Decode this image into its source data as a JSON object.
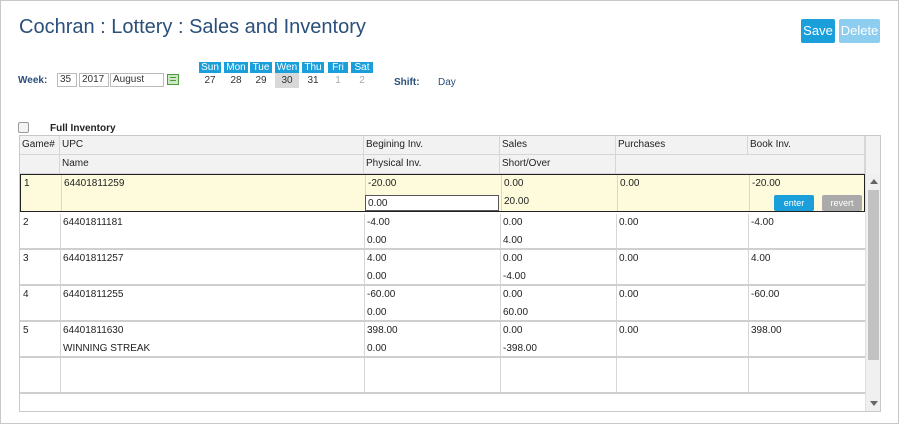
{
  "header": {
    "title": "Cochran : Lottery : Sales and Inventory"
  },
  "toolbar": {
    "save_label": "Save",
    "delete_label": "Delete"
  },
  "week": {
    "label": "Week:",
    "number": "35",
    "year": "2017",
    "month": "August",
    "days": [
      {
        "name": "Sun",
        "num": "27"
      },
      {
        "name": "Mon",
        "num": "28"
      },
      {
        "name": "Tue",
        "num": "29"
      },
      {
        "name": "Wen",
        "num": "30"
      },
      {
        "name": "Thu",
        "num": "31"
      },
      {
        "name": "Fri",
        "num": "1"
      },
      {
        "name": "Sat",
        "num": "2"
      }
    ],
    "selected_day": "30"
  },
  "shift": {
    "label": "Shift:",
    "value": "Day"
  },
  "full_inventory": {
    "label": "Full Inventory",
    "checked": false
  },
  "grid": {
    "header_row1": [
      "Game#",
      "UPC",
      "Begining Inv.",
      "Sales",
      "Purchases",
      "Book Inv."
    ],
    "header_row2": [
      "",
      "Name",
      "Physical Inv.",
      "Short/Over",
      "",
      ""
    ],
    "rows": [
      {
        "game": "1",
        "upc": "64401811259",
        "name": "",
        "begin": "-20.00",
        "physical": "0.00",
        "sales": "0.00",
        "short": "20.00",
        "purchases": "0.00",
        "book": "-20.00"
      },
      {
        "game": "2",
        "upc": "64401811181",
        "name": "",
        "begin": "-4.00",
        "physical": "0.00",
        "sales": "0.00",
        "short": "4.00",
        "purchases": "0.00",
        "book": "-4.00"
      },
      {
        "game": "3",
        "upc": "64401811257",
        "name": "",
        "begin": "4.00",
        "physical": "0.00",
        "sales": "0.00",
        "short": "-4.00",
        "purchases": "0.00",
        "book": "4.00"
      },
      {
        "game": "4",
        "upc": "64401811255",
        "name": "",
        "begin": "-60.00",
        "physical": "0.00",
        "sales": "0.00",
        "short": "60.00",
        "purchases": "0.00",
        "book": "-60.00"
      },
      {
        "game": "5",
        "upc": "64401811630",
        "name": "WINNING STREAK",
        "begin": "398.00",
        "physical": "0.00",
        "sales": "0.00",
        "short": "-398.00",
        "purchases": "0.00",
        "book": "398.00"
      }
    ],
    "enter_label": "enter",
    "revert_label": "revert"
  },
  "colors": {
    "accent": "#1a9fdb",
    "title": "#2a4f7a",
    "active_row": "#fdfbdc"
  }
}
